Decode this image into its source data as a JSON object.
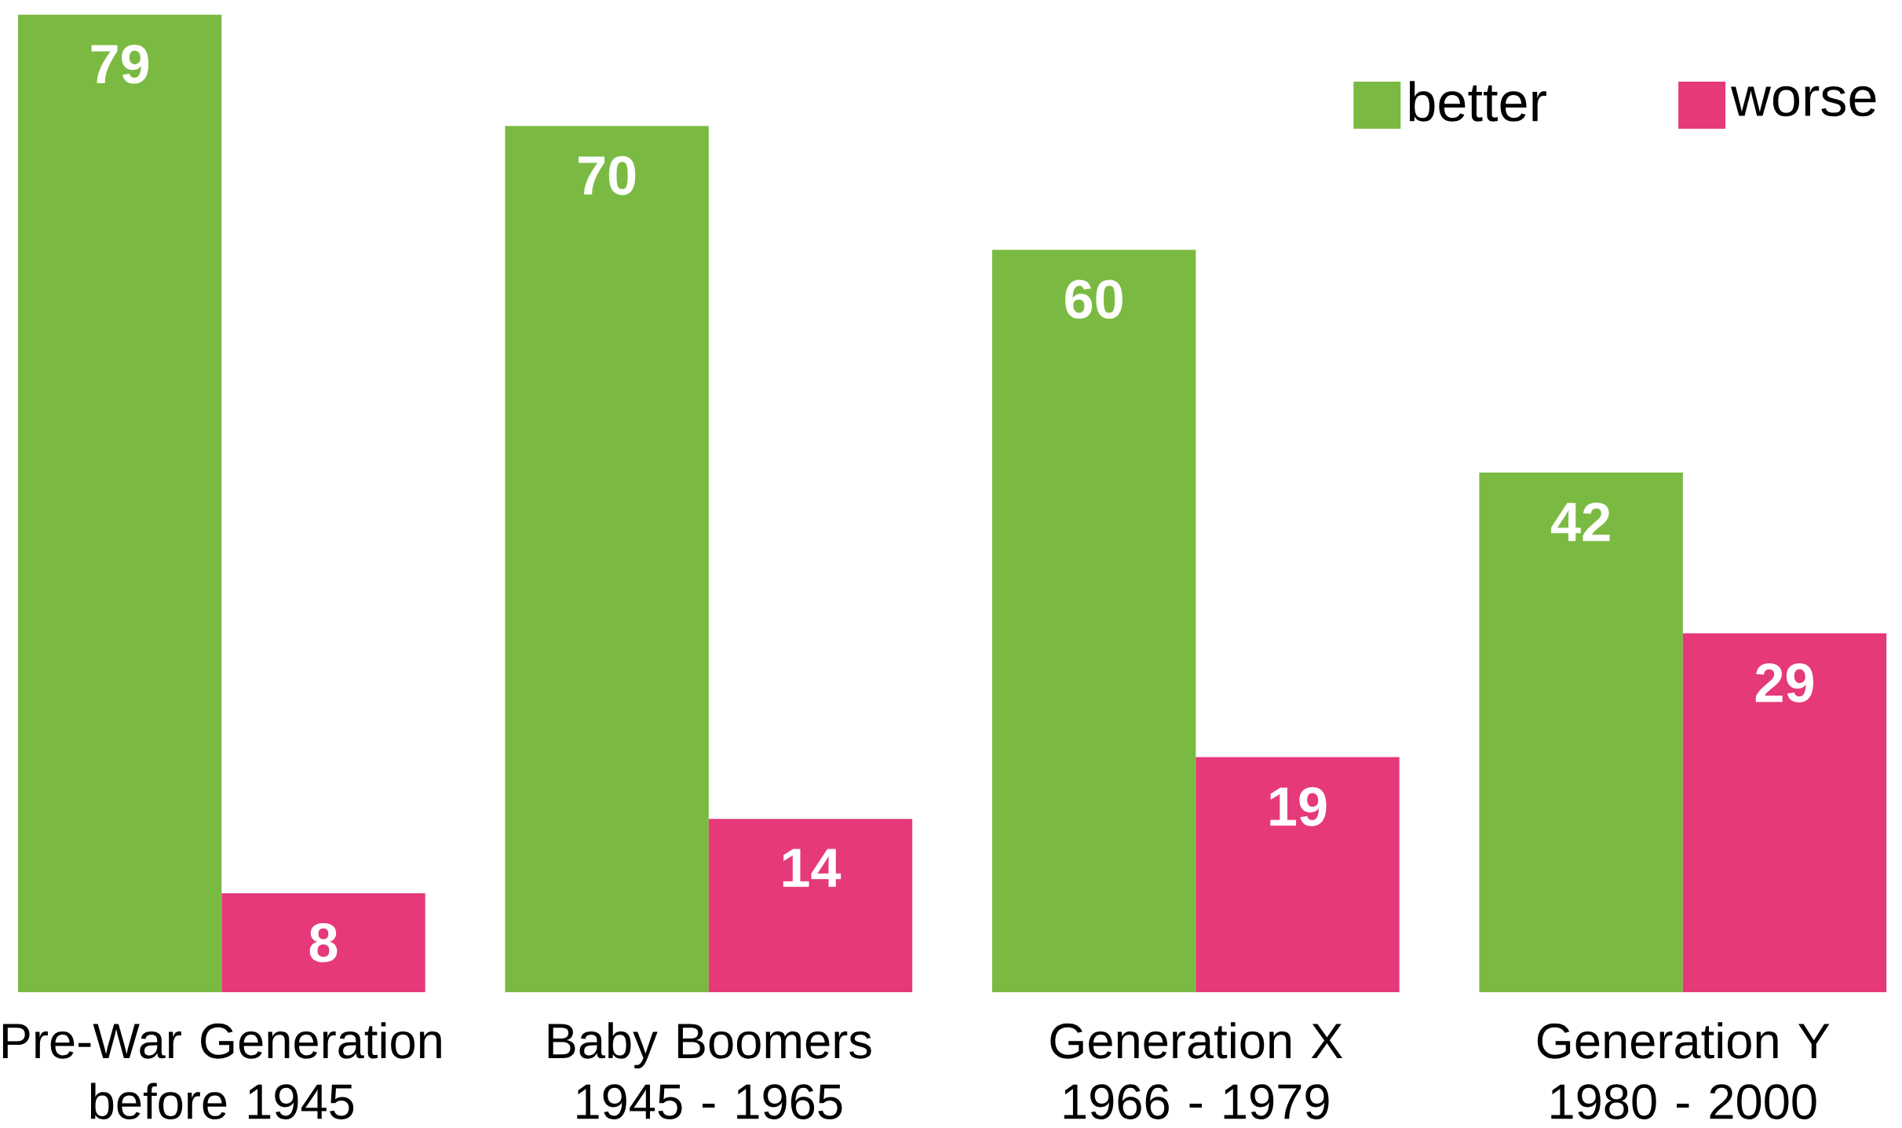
{
  "chart_data": {
    "type": "bar",
    "categories": [
      "Pre-War Generation before 1945",
      "Baby Boomers 1945 - 1965",
      "Generation X 1966 - 1979",
      "Generation Y 1980 - 2000"
    ],
    "series": [
      {
        "name": "better",
        "color": "#7aba42",
        "values": [
          79,
          70,
          60,
          42
        ]
      },
      {
        "name": "worse",
        "color": "#e5397a",
        "values": [
          8,
          14,
          19,
          29
        ]
      }
    ],
    "data_labels": true,
    "legend": "top right"
  }
}
